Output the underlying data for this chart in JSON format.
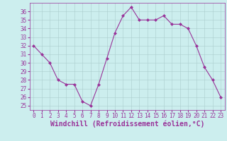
{
  "x": [
    0,
    1,
    2,
    3,
    4,
    5,
    6,
    7,
    8,
    9,
    10,
    11,
    12,
    13,
    14,
    15,
    16,
    17,
    18,
    19,
    20,
    21,
    22,
    23
  ],
  "y": [
    32,
    31,
    30,
    28,
    27.5,
    27.5,
    25.5,
    25,
    27.5,
    30.5,
    33.5,
    35.5,
    36.5,
    35,
    35,
    35,
    35.5,
    34.5,
    34.5,
    34,
    32,
    29.5,
    28,
    26
  ],
  "line_color": "#993399",
  "marker": "D",
  "markersize": 2.0,
  "linewidth": 0.8,
  "xlabel": "Windchill (Refroidissement éolien,°C)",
  "xlabel_fontsize": 7,
  "ylim": [
    24.5,
    37
  ],
  "xlim": [
    -0.5,
    23.5
  ],
  "yticks": [
    25,
    26,
    27,
    28,
    29,
    30,
    31,
    32,
    33,
    34,
    35,
    36
  ],
  "xticks": [
    0,
    1,
    2,
    3,
    4,
    5,
    6,
    7,
    8,
    9,
    10,
    11,
    12,
    13,
    14,
    15,
    16,
    17,
    18,
    19,
    20,
    21,
    22,
    23
  ],
  "tick_fontsize": 5.5,
  "background_color": "#cceeee",
  "grid_color": "#aacccc",
  "grid_linewidth": 0.4,
  "text_color": "#993399"
}
